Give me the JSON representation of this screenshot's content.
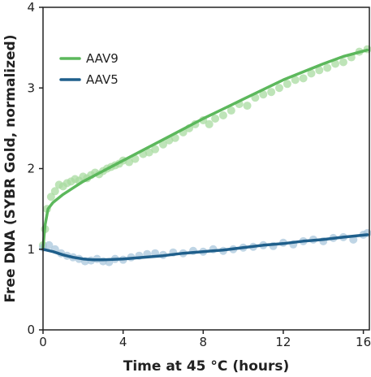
{
  "chart_data": {
    "type": "scatter",
    "title": "",
    "xlabel": "Time at 45 °C (hours)",
    "ylabel": "Free DNA (SYBR Gold, normalized)",
    "xlim": [
      0,
      16.3
    ],
    "ylim": [
      0,
      4
    ],
    "xticks": [
      0,
      4,
      8,
      12,
      16
    ],
    "yticks": [
      0,
      1,
      2,
      3,
      4
    ],
    "grid": false,
    "legend_position": "top-left",
    "series": [
      {
        "name": "AAV9",
        "color": "#5cb85c",
        "marker_color": "#a8dba0",
        "points": [
          [
            0.0,
            1.05
          ],
          [
            0.1,
            1.25
          ],
          [
            0.2,
            1.5
          ],
          [
            0.4,
            1.65
          ],
          [
            0.6,
            1.72
          ],
          [
            0.8,
            1.8
          ],
          [
            1.0,
            1.78
          ],
          [
            1.2,
            1.82
          ],
          [
            1.4,
            1.84
          ],
          [
            1.6,
            1.87
          ],
          [
            1.8,
            1.85
          ],
          [
            2.0,
            1.9
          ],
          [
            2.2,
            1.88
          ],
          [
            2.4,
            1.92
          ],
          [
            2.6,
            1.95
          ],
          [
            2.8,
            1.93
          ],
          [
            3.0,
            1.97
          ],
          [
            3.2,
            2.0
          ],
          [
            3.4,
            2.02
          ],
          [
            3.6,
            2.04
          ],
          [
            3.8,
            2.06
          ],
          [
            4.0,
            2.1
          ],
          [
            4.3,
            2.08
          ],
          [
            4.6,
            2.12
          ],
          [
            5.0,
            2.18
          ],
          [
            5.3,
            2.2
          ],
          [
            5.6,
            2.24
          ],
          [
            6.0,
            2.3
          ],
          [
            6.3,
            2.35
          ],
          [
            6.6,
            2.38
          ],
          [
            7.0,
            2.45
          ],
          [
            7.3,
            2.5
          ],
          [
            7.6,
            2.55
          ],
          [
            8.0,
            2.6
          ],
          [
            8.3,
            2.55
          ],
          [
            8.6,
            2.62
          ],
          [
            9.0,
            2.66
          ],
          [
            9.4,
            2.72
          ],
          [
            9.8,
            2.8
          ],
          [
            10.2,
            2.78
          ],
          [
            10.6,
            2.88
          ],
          [
            11.0,
            2.92
          ],
          [
            11.4,
            2.95
          ],
          [
            11.8,
            3.0
          ],
          [
            12.2,
            3.05
          ],
          [
            12.6,
            3.1
          ],
          [
            13.0,
            3.12
          ],
          [
            13.4,
            3.18
          ],
          [
            13.8,
            3.22
          ],
          [
            14.2,
            3.25
          ],
          [
            14.6,
            3.3
          ],
          [
            15.0,
            3.32
          ],
          [
            15.4,
            3.38
          ],
          [
            15.8,
            3.45
          ],
          [
            16.2,
            3.48
          ]
        ],
        "fit": [
          [
            0.0,
            1.02
          ],
          [
            0.1,
            1.3
          ],
          [
            0.25,
            1.5
          ],
          [
            0.5,
            1.58
          ],
          [
            1.0,
            1.68
          ],
          [
            1.5,
            1.76
          ],
          [
            2.0,
            1.84
          ],
          [
            3.0,
            1.97
          ],
          [
            4.0,
            2.1
          ],
          [
            5.0,
            2.23
          ],
          [
            6.0,
            2.36
          ],
          [
            7.0,
            2.49
          ],
          [
            8.0,
            2.62
          ],
          [
            9.0,
            2.74
          ],
          [
            10.0,
            2.86
          ],
          [
            11.0,
            2.98
          ],
          [
            12.0,
            3.1
          ],
          [
            13.0,
            3.2
          ],
          [
            14.0,
            3.3
          ],
          [
            15.0,
            3.39
          ],
          [
            16.2,
            3.47
          ]
        ]
      },
      {
        "name": "AAV5",
        "color": "#1f5f8b",
        "marker_color": "#a9c7dc",
        "points": [
          [
            0.0,
            1.02
          ],
          [
            0.3,
            1.05
          ],
          [
            0.6,
            1.0
          ],
          [
            0.9,
            0.95
          ],
          [
            1.2,
            0.92
          ],
          [
            1.5,
            0.9
          ],
          [
            1.8,
            0.88
          ],
          [
            2.1,
            0.85
          ],
          [
            2.4,
            0.86
          ],
          [
            2.7,
            0.88
          ],
          [
            3.0,
            0.85
          ],
          [
            3.3,
            0.84
          ],
          [
            3.6,
            0.88
          ],
          [
            4.0,
            0.87
          ],
          [
            4.4,
            0.9
          ],
          [
            4.8,
            0.92
          ],
          [
            5.2,
            0.94
          ],
          [
            5.6,
            0.95
          ],
          [
            6.0,
            0.93
          ],
          [
            6.5,
            0.96
          ],
          [
            7.0,
            0.95
          ],
          [
            7.5,
            0.98
          ],
          [
            8.0,
            0.97
          ],
          [
            8.5,
            1.0
          ],
          [
            9.0,
            0.98
          ],
          [
            9.5,
            1.0
          ],
          [
            10.0,
            1.02
          ],
          [
            10.5,
            1.03
          ],
          [
            11.0,
            1.05
          ],
          [
            11.5,
            1.04
          ],
          [
            12.0,
            1.08
          ],
          [
            12.5,
            1.06
          ],
          [
            13.0,
            1.1
          ],
          [
            13.5,
            1.12
          ],
          [
            14.0,
            1.1
          ],
          [
            14.5,
            1.14
          ],
          [
            15.0,
            1.15
          ],
          [
            15.5,
            1.12
          ],
          [
            16.0,
            1.18
          ],
          [
            16.2,
            1.2
          ]
        ],
        "fit": [
          [
            0.0,
            1.0
          ],
          [
            0.5,
            0.97
          ],
          [
            1.0,
            0.93
          ],
          [
            1.5,
            0.9
          ],
          [
            2.0,
            0.88
          ],
          [
            2.5,
            0.87
          ],
          [
            3.0,
            0.87
          ],
          [
            4.0,
            0.88
          ],
          [
            5.0,
            0.9
          ],
          [
            6.0,
            0.92
          ],
          [
            7.0,
            0.95
          ],
          [
            8.0,
            0.97
          ],
          [
            9.0,
            0.99
          ],
          [
            10.0,
            1.02
          ],
          [
            11.0,
            1.05
          ],
          [
            12.0,
            1.07
          ],
          [
            13.0,
            1.1
          ],
          [
            14.0,
            1.12
          ],
          [
            15.0,
            1.15
          ],
          [
            16.2,
            1.18
          ]
        ]
      }
    ]
  }
}
